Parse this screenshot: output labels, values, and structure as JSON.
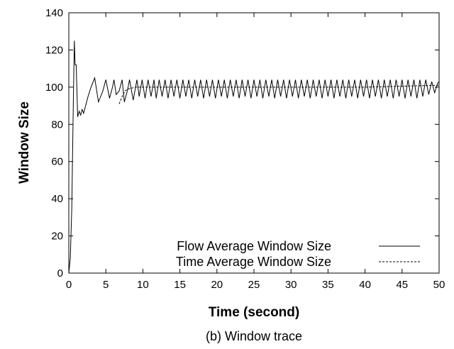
{
  "chart_data": {
    "type": "line",
    "title": "",
    "caption": "(b) Window trace",
    "xlabel": "Time (second)",
    "ylabel": "Window Size",
    "xlim": [
      0,
      50
    ],
    "ylim": [
      0,
      140
    ],
    "xticks": [
      0,
      5,
      10,
      15,
      20,
      25,
      30,
      35,
      40,
      45,
      50
    ],
    "yticks": [
      0,
      20,
      40,
      60,
      80,
      100,
      120,
      140
    ],
    "grid": false,
    "legend": "bottom-right",
    "series": [
      {
        "name": "Flow Average Window Size",
        "style": "solid",
        "x": [
          0,
          0.2,
          0.4,
          0.6,
          0.75,
          0.85,
          1.0,
          1.2,
          1.4,
          1.6,
          1.8,
          2.0,
          2.2,
          2.6,
          3.0,
          3.5,
          4.0,
          4.3,
          4.6,
          5.0,
          5.5,
          5.9,
          6.1,
          6.4,
          6.8,
          7.2,
          7.5,
          7.9,
          8.2,
          8.7,
          9.2,
          9.5,
          9.9,
          10.3,
          10.7,
          11.1,
          11.5,
          11.8,
          12.2,
          12.6,
          13.0,
          13.4,
          13.8,
          14.2,
          14.6,
          15.0,
          15.4,
          15.8,
          16.2,
          16.6,
          17.0,
          17.4,
          17.8,
          18.2,
          18.6,
          19.0,
          19.4,
          19.8,
          20.2,
          20.6,
          21.0,
          21.4,
          21.8,
          22.2,
          22.6,
          23.0,
          23.4,
          23.8,
          24.2,
          24.6,
          25.0,
          25.4,
          25.8,
          26.2,
          26.6,
          27.0,
          27.4,
          27.8,
          28.2,
          28.6,
          29.0,
          29.4,
          29.8,
          30.2,
          30.6,
          31.0,
          31.4,
          31.8,
          32.2,
          32.6,
          33.0,
          33.4,
          33.8,
          34.2,
          34.6,
          35.0,
          35.4,
          35.8,
          36.2,
          36.6,
          37.0,
          37.4,
          37.8,
          38.2,
          38.6,
          39.0,
          39.4,
          39.8,
          40.2,
          40.6,
          41.0,
          41.4,
          41.8,
          42.2,
          42.6,
          43.0,
          43.4,
          43.8,
          44.2,
          44.6,
          45.0,
          45.4,
          45.8,
          46.2,
          46.6,
          47.0,
          47.4,
          47.8,
          48.2,
          48.6,
          49.0,
          49.4,
          49.8,
          50.0
        ],
        "y": [
          0,
          8,
          35,
          90,
          125,
          112,
          112,
          84,
          87,
          85,
          88,
          86,
          89,
          95,
          100,
          105,
          92,
          95,
          98,
          104,
          94,
          100,
          104,
          96,
          98,
          104,
          92,
          98,
          104,
          93,
          104,
          95,
          104,
          94,
          104,
          95,
          104,
          94,
          104,
          95,
          104,
          94,
          104,
          95,
          104,
          94,
          104,
          95,
          104,
          94,
          104,
          95,
          104,
          94,
          104,
          95,
          104,
          94,
          104,
          95,
          104,
          94,
          104,
          95,
          104,
          94,
          104,
          95,
          104,
          94,
          104,
          95,
          104,
          94,
          104,
          95,
          104,
          94,
          104,
          95,
          104,
          94,
          104,
          95,
          104,
          94,
          104,
          95,
          104,
          94,
          104,
          95,
          104,
          94,
          104,
          95,
          104,
          94,
          104,
          95,
          104,
          94,
          104,
          95,
          104,
          94,
          104,
          95,
          104,
          94,
          104,
          95,
          104,
          94,
          104,
          95,
          104,
          94,
          104,
          95,
          104,
          94,
          104,
          95,
          104,
          94,
          104,
          95,
          104,
          96,
          103,
          97,
          102,
          103
        ]
      },
      {
        "name": "Time Average Window Size",
        "style": "dashed",
        "x": [
          6.8,
          7.2,
          7.6,
          8.0,
          8.5,
          9.0,
          10.0,
          12.0,
          15.0,
          20.0,
          25.0,
          30.0,
          35.0,
          40.0,
          45.0,
          50.0
        ],
        "y": [
          91,
          95,
          98,
          99,
          99.5,
          100,
          100,
          100,
          100,
          100,
          100,
          100,
          100,
          100,
          100.5,
          101
        ]
      }
    ]
  }
}
